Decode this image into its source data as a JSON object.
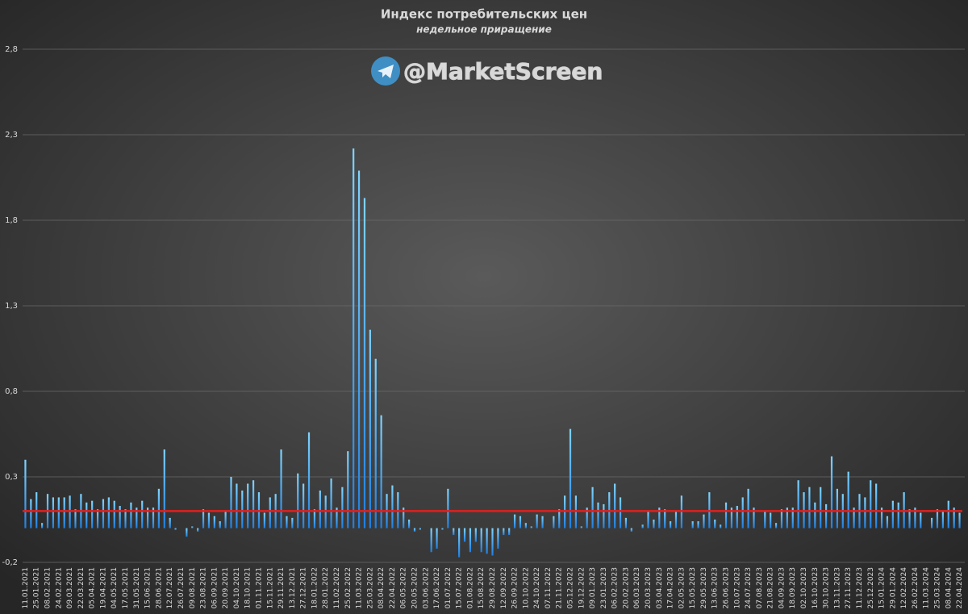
{
  "chart_data": {
    "type": "bar",
    "title": "Индекс потребительских цен",
    "subtitle": "недельное приращение",
    "watermark": "@MarketScreen",
    "color": "#2a9df4",
    "reference_line": {
      "value": 0.1,
      "color": "#e0201e"
    },
    "ylim": [
      -0.2,
      2.8
    ],
    "yticks": [
      {
        "value": -0.2,
        "label": "-0,2"
      },
      {
        "value": 0.3,
        "label": "0,3"
      },
      {
        "value": 0.8,
        "label": "0,8"
      },
      {
        "value": 1.3,
        "label": "1,3"
      },
      {
        "value": 1.8,
        "label": "1,8"
      },
      {
        "value": 2.3,
        "label": "2,3"
      },
      {
        "value": 2.8,
        "label": "2,8"
      }
    ],
    "grid": true,
    "categories": [
      "11.01.2021",
      null,
      "25.01.2021",
      null,
      "08.02.2021",
      null,
      "24.02.2021",
      null,
      "09.03.2021",
      null,
      "22.03.2021",
      null,
      "05.04.2021",
      null,
      "19.04.2021",
      null,
      "04.05.2021",
      null,
      "17.05.2021",
      null,
      "31.05.2021",
      null,
      "15.06.2021",
      null,
      "28.06.2021",
      null,
      "12.07.2021",
      null,
      "26.07.2021",
      null,
      "09.08.2021",
      null,
      "23.08.2021",
      null,
      "06.09.2021",
      null,
      "20.09.2021",
      null,
      "04.10.2021",
      null,
      "18.10.2021",
      null,
      "01.11.2021",
      null,
      "15.11.2021",
      null,
      "29.11.2021",
      null,
      "13.12.2021",
      null,
      "27.12.2021",
      null,
      "18.01.2022",
      null,
      "28.01.2022",
      null,
      "11.02.2022",
      null,
      "25.02.2022",
      null,
      "11.03.2022",
      null,
      "25.03.2022",
      null,
      "08.04.2022",
      null,
      "22.04.2022",
      null,
      "06.05.2022",
      null,
      "20.05.2022",
      null,
      "03.06.2022",
      null,
      "17.06.2022",
      null,
      "01.07.2022",
      null,
      "15.07.2022",
      null,
      "01.08.2022",
      null,
      "15.08.2022",
      null,
      "29.08.2022",
      null,
      "12.09.2022",
      null,
      "26.09.2022",
      null,
      "10.10.2022",
      null,
      "24.10.2022",
      null,
      "07.11.2022",
      null,
      "21.11.2022",
      null,
      "05.12.2022",
      null,
      "19.12.2022",
      null,
      "09.01.2023",
      null,
      "23.01.2023",
      null,
      "06.02.2023",
      null,
      "20.02.2023",
      null,
      "06.03.2023",
      null,
      "20.03.2023",
      null,
      "03.04.2023",
      null,
      "17.04.2023",
      null,
      "02.05.2023",
      null,
      "15.05.2023",
      null,
      "29.05.2023",
      null,
      "13.06.2023",
      null,
      "26.06.2023",
      null,
      "10.07.2023",
      null,
      "24.07.2023",
      null,
      "07.08.2023",
      null,
      "21.08.2023",
      null,
      "04.09.2023",
      null,
      "18.09.2023",
      null,
      "02.10.2023",
      null,
      "16.10.2023",
      null,
      "30.10.2023",
      null,
      "13.11.2023",
      null,
      "27.11.2023",
      null,
      "11.12.2023",
      null,
      "25.12.2023",
      null,
      "15.01.2024",
      null,
      "29.01.2024",
      null,
      "12.02.2024",
      null,
      "26.02.2024",
      null,
      "11.03.2024",
      null,
      "25.03.2024",
      null,
      "08.04.2024",
      null,
      "22.04.2024"
    ],
    "values": [
      0.4,
      0.17,
      0.21,
      0.03,
      0.2,
      0.18,
      0.18,
      0.18,
      0.19,
      0.11,
      0.2,
      0.15,
      0.16,
      0.11,
      0.17,
      0.18,
      0.16,
      0.13,
      0.11,
      0.15,
      0.12,
      0.16,
      0.12,
      0.12,
      0.23,
      0.46,
      0.06,
      -0.01,
      0.0,
      -0.05,
      0.01,
      -0.02,
      0.11,
      0.09,
      0.07,
      0.04,
      0.1,
      0.3,
      0.26,
      0.22,
      0.26,
      0.28,
      0.21,
      0.09,
      0.18,
      0.2,
      0.46,
      0.07,
      0.06,
      0.32,
      0.26,
      0.56,
      0.11,
      0.22,
      0.19,
      0.29,
      0.12,
      0.24,
      0.45,
      2.22,
      2.09,
      1.93,
      1.16,
      0.99,
      0.66,
      0.2,
      0.25,
      0.21,
      0.12,
      0.05,
      -0.02,
      -0.01,
      0.0,
      -0.14,
      -0.12,
      -0.01,
      0.23,
      -0.04,
      -0.17,
      -0.08,
      -0.14,
      -0.08,
      -0.14,
      -0.15,
      -0.16,
      -0.12,
      -0.04,
      -0.04,
      0.08,
      0.07,
      0.03,
      0.01,
      0.08,
      0.07,
      0.0,
      0.07,
      0.11,
      0.19,
      0.58,
      0.19,
      0.01,
      0.12,
      0.24,
      0.15,
      0.14,
      0.21,
      0.26,
      0.18,
      0.06,
      -0.02,
      0.0,
      0.02,
      0.1,
      0.05,
      0.12,
      0.11,
      0.04,
      0.1,
      0.19,
      0.0,
      0.04,
      0.04,
      0.08,
      0.21,
      0.05,
      0.02,
      0.15,
      0.12,
      0.13,
      0.18,
      0.23,
      0.12,
      0.0,
      0.1,
      0.09,
      0.03,
      0.11,
      0.12,
      0.12,
      0.28,
      0.21,
      0.24,
      0.15,
      0.24,
      0.14,
      0.42,
      0.23,
      0.2,
      0.33,
      0.12,
      0.2,
      0.18,
      0.28,
      0.26,
      0.12,
      0.07,
      0.16,
      0.15,
      0.21,
      0.11,
      0.12,
      0.09,
      0.0,
      0.06,
      0.11,
      0.1,
      0.16,
      0.12,
      0.09
    ]
  }
}
